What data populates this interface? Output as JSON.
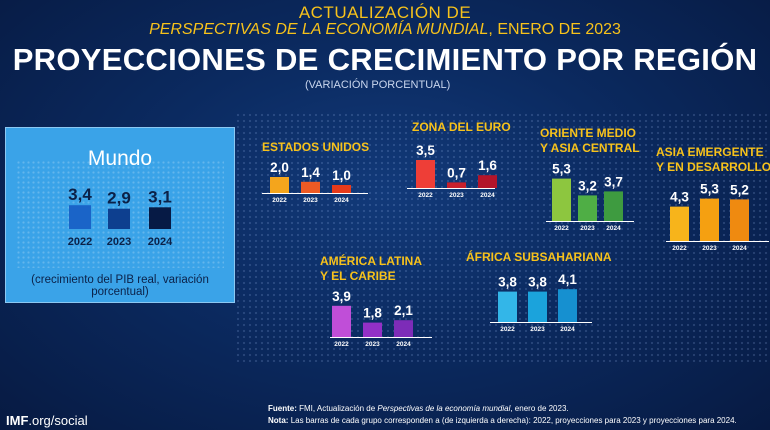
{
  "header": {
    "line1": "ACTUALIZACIÓN DE",
    "line2_italic": "PERSPECTIVAS DE LA ECONOMÍA MUNDIAL",
    "line2_rest": ", ENERO DE 2023",
    "title": "PROYECCIONES DE CRECIMIENTO POR REGIÓN",
    "subtitle": "(VARIACIÓN PORCENTUAL)"
  },
  "footer": {
    "brand_bold": "IMF",
    "brand_rest": ".org/social",
    "source_label": "Fuente:",
    "source_pre": "FMI, Actualización de ",
    "source_italic": "Perspectivas de la economía mundial",
    "source_post": ", enero de 2023.",
    "note_label": "Nota:",
    "note_text": "Las barras de cada grupo corresponden a (de izquierda a derecha): 2022, proyecciones para 2023 y proyecciones para 2024."
  },
  "colors": {
    "world": [
      "#1a64c8",
      "#0d3f8f",
      "#061a45"
    ],
    "estados_unidos": [
      "#f4a51c",
      "#ee5a24",
      "#e73a1a"
    ],
    "zona_euro": [
      "#ee3e37",
      "#c8202c",
      "#b3142a"
    ],
    "oriente_medio": [
      "#8dc63f",
      "#4fae45",
      "#3e9b40"
    ],
    "asia": [
      "#f7b41b",
      "#f5a011",
      "#ef8a10"
    ],
    "america_latina": [
      "#c04ed8",
      "#9330c6",
      "#7d2cb8"
    ],
    "africa": [
      "#33b6e8",
      "#1ba3dc",
      "#1690d0"
    ]
  },
  "chart_data": [
    {
      "type": "bar",
      "id": "world",
      "title": "Mundo",
      "categories": [
        "2022",
        "2023",
        "2024"
      ],
      "values": [
        3.4,
        2.9,
        3.1
      ],
      "labels": [
        "3,4",
        "2,9",
        "3,1"
      ],
      "note": "(crecimiento del PIB real, variación porcentual)"
    },
    {
      "type": "bar",
      "id": "estados_unidos",
      "title": [
        "ESTADOS UNIDOS"
      ],
      "categories": [
        "2022",
        "2023",
        "2024"
      ],
      "values": [
        2.0,
        1.4,
        1.0
      ],
      "labels": [
        "2,0",
        "1,4",
        "1,0"
      ]
    },
    {
      "type": "bar",
      "id": "zona_euro",
      "title": [
        "ZONA DEL EURO"
      ],
      "categories": [
        "2022",
        "2023",
        "2024"
      ],
      "values": [
        3.5,
        0.7,
        1.6
      ],
      "labels": [
        "3,5",
        "0,7",
        "1,6"
      ]
    },
    {
      "type": "bar",
      "id": "oriente_medio",
      "title": [
        "ORIENTE MEDIO",
        "Y ASIA CENTRAL"
      ],
      "categories": [
        "2022",
        "2023",
        "2024"
      ],
      "values": [
        5.3,
        3.2,
        3.7
      ],
      "labels": [
        "5,3",
        "3,2",
        "3,7"
      ]
    },
    {
      "type": "bar",
      "id": "asia",
      "title": [
        "ASIA EMERGENTE",
        "Y EN DESARROLLO"
      ],
      "categories": [
        "2022",
        "2023",
        "2024"
      ],
      "values": [
        4.3,
        5.3,
        5.2
      ],
      "labels": [
        "4,3",
        "5,3",
        "5,2"
      ]
    },
    {
      "type": "bar",
      "id": "america_latina",
      "title": [
        "AMÉRICA LATINA",
        "Y EL CARIBE"
      ],
      "categories": [
        "2022",
        "2023",
        "2024"
      ],
      "values": [
        3.9,
        1.8,
        2.1
      ],
      "labels": [
        "3,9",
        "1,8",
        "2,1"
      ]
    },
    {
      "type": "bar",
      "id": "africa",
      "title": [
        "ÁFRICA SUBSAHARIANA"
      ],
      "categories": [
        "2022",
        "2023",
        "2024"
      ],
      "values": [
        3.8,
        3.8,
        4.1
      ],
      "labels": [
        "3,8",
        "3,8",
        "4,1"
      ]
    }
  ]
}
